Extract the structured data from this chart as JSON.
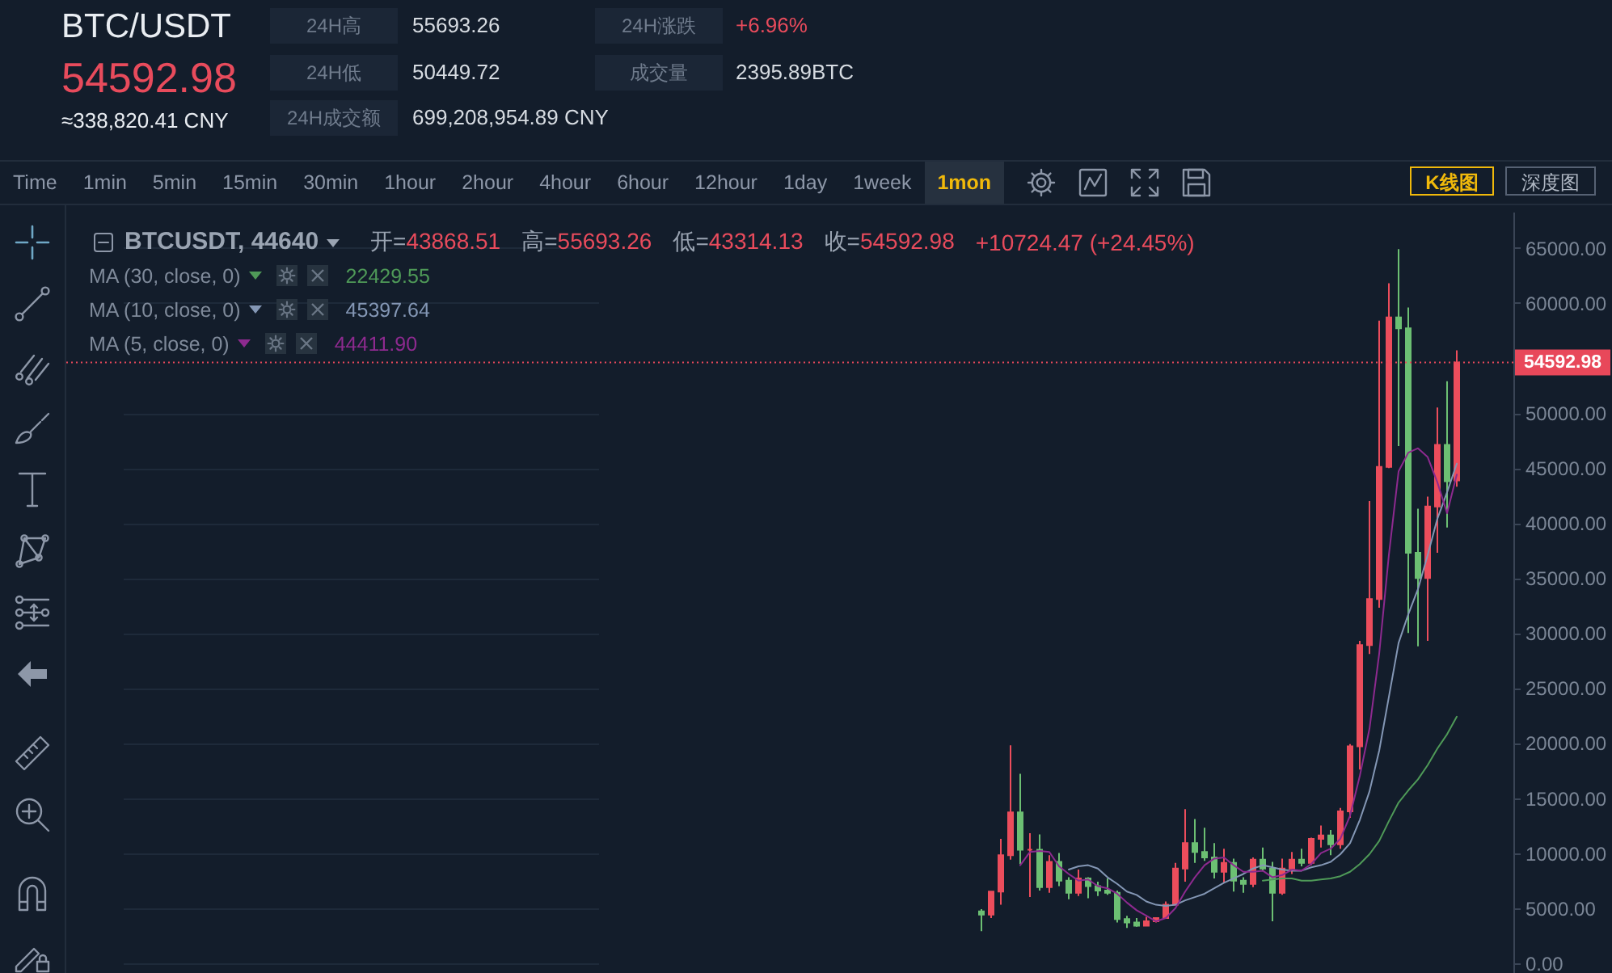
{
  "chart_data": [
    {
      "type": "other",
      "title": "BTC/USDT",
      "annotations": [
        "54592.98",
        "≈338,820.41 CNY",
        "24H高",
        "55693.26",
        "24H低",
        "50449.72",
        "24H成交额",
        "699,208,954.89 CNY",
        "24H涨跌",
        "+6.96%",
        "成交量",
        "2395.89BTC"
      ]
    },
    {
      "type": "other",
      "annotations": [
        "Time",
        "1min",
        "5min",
        "15min",
        "30min",
        "1hour",
        "2hour",
        "4hour",
        "6hour",
        "12hour",
        "1day",
        "1week",
        "1mon",
        "K线图",
        "深度图"
      ]
    },
    {
      "type": "candlestick",
      "annotations": [
        "BTCUSDT, 44640",
        "开=43868.51",
        "高=55693.26",
        "低=43314.13",
        "收=54592.98",
        "+10724.47 (+24.45%)",
        "22429.55",
        "45397.64",
        "44411.90"
      ],
      "categories": [
        null,
        null,
        null,
        null,
        null,
        null,
        null,
        null,
        null,
        null,
        null,
        null,
        null,
        null,
        null,
        null,
        null,
        null,
        null,
        null,
        null,
        null,
        null,
        null,
        null,
        null,
        null,
        null,
        null,
        null,
        null,
        null,
        null,
        null,
        null,
        null,
        null,
        null,
        null,
        null,
        null,
        null,
        null,
        null,
        null,
        null,
        null,
        null,
        null,
        null
      ],
      "ohlc": [
        [
          4700,
          4900,
          2900,
          4400
        ],
        [
          4400,
          6500,
          4100,
          6500
        ],
        [
          6500,
          11300,
          5300,
          9800
        ],
        [
          9800,
          19800,
          9400,
          13700
        ],
        [
          13700,
          17200,
          9000,
          10300
        ],
        [
          10300,
          11800,
          6000,
          10300
        ],
        [
          10300,
          11700,
          6600,
          6900
        ],
        [
          6900,
          9800,
          6400,
          9200
        ],
        [
          9200,
          10000,
          7000,
          7500
        ],
        [
          7500,
          7800,
          5800,
          6400
        ],
        [
          6400,
          8500,
          6100,
          7700
        ],
        [
          7700,
          7800,
          5900,
          7000
        ],
        [
          7000,
          7400,
          6100,
          6600
        ],
        [
          6600,
          7700,
          6200,
          6400
        ],
        [
          6400,
          6600,
          3700,
          4000
        ],
        [
          4000,
          4300,
          3200,
          3700
        ],
        [
          3700,
          4100,
          3300,
          3400
        ],
        [
          3400,
          4200,
          3400,
          3800
        ],
        [
          3800,
          4100,
          3700,
          4100
        ],
        [
          4100,
          5600,
          4100,
          5300
        ],
        [
          5300,
          9100,
          5300,
          8600
        ],
        [
          8600,
          14000,
          7400,
          10900
        ],
        [
          10900,
          13100,
          9100,
          10100
        ],
        [
          10100,
          12300,
          9300,
          9600
        ],
        [
          9600,
          10900,
          7700,
          8300
        ],
        [
          8300,
          10400,
          7300,
          9100
        ],
        [
          9100,
          9500,
          6500,
          7500
        ],
        [
          7500,
          7800,
          6400,
          7200
        ],
        [
          7200,
          9600,
          6900,
          9400
        ],
        [
          9400,
          10500,
          8400,
          8600
        ],
        [
          8600,
          9200,
          3800,
          6400
        ],
        [
          6400,
          9500,
          6200,
          8600
        ],
        [
          8600,
          10100,
          8100,
          9400
        ],
        [
          9400,
          10400,
          8800,
          9100
        ],
        [
          9100,
          11400,
          8900,
          11300
        ],
        [
          11300,
          12500,
          10500,
          11600
        ],
        [
          11600,
          12100,
          9800,
          10800
        ],
        [
          10800,
          14100,
          10400,
          13800
        ],
        [
          13800,
          19900,
          13200,
          19700
        ],
        [
          19700,
          29300,
          17600,
          28900
        ],
        [
          28900,
          42000,
          28100,
          33100
        ],
        [
          33100,
          58400,
          32300,
          45100
        ],
        [
          45100,
          61800,
          45000,
          58700
        ],
        [
          58700,
          64900,
          47000,
          57700
        ],
        [
          57700,
          59600,
          30000,
          37300
        ],
        [
          37300,
          41300,
          28800,
          35000
        ],
        [
          35000,
          42400,
          29300,
          41500
        ],
        [
          41500,
          50500,
          37300,
          47100
        ],
        [
          47100,
          52900,
          39600,
          43800
        ],
        [
          43868.51,
          55693.26,
          43314.13,
          54592.98
        ]
      ],
      "colors": [
        "#6cbf73",
        "#ec4d5c",
        "#ec4d5c",
        "#ec4d5c",
        "#6cbf73",
        "#ec4d5c",
        "#6cbf73",
        "#ec4d5c",
        "#6cbf73",
        "#6cbf73",
        "#ec4d5c",
        "#6cbf73",
        "#6cbf73",
        "#6cbf73",
        "#6cbf73",
        "#6cbf73",
        "#6cbf73",
        "#ec4d5c",
        "#ec4d5c",
        "#ec4d5c",
        "#ec4d5c",
        "#ec4d5c",
        "#6cbf73",
        "#6cbf73",
        "#6cbf73",
        "#ec4d5c",
        "#6cbf73",
        "#6cbf73",
        "#ec4d5c",
        "#6cbf73",
        "#6cbf73",
        "#ec4d5c",
        "#ec4d5c",
        "#6cbf73",
        "#ec4d5c",
        "#ec4d5c",
        "#6cbf73",
        "#ec4d5c",
        "#ec4d5c",
        "#ec4d5c",
        "#ec4d5c",
        "#ec4d5c",
        "#ec4d5c",
        "#6cbf73",
        "#6cbf73",
        "#6cbf73",
        "#ec4d5c",
        "#ec4d5c",
        "#6cbf73",
        "#ec4d5c"
      ],
      "series": [
        {
          "name": "MA (30, close, 0)",
          "type": "line",
          "color": "#4f9a58",
          "values": [
            null,
            null,
            null,
            null,
            null,
            null,
            null,
            null,
            null,
            null,
            null,
            null,
            null,
            null,
            null,
            null,
            null,
            null,
            null,
            null,
            null,
            null,
            null,
            null,
            null,
            null,
            null,
            null,
            null,
            7500,
            7600,
            7700,
            7700,
            7500,
            7500,
            7600,
            7700,
            7900,
            8300,
            9000,
            9900,
            11100,
            12900,
            14600,
            15700,
            16700,
            18000,
            19500,
            20800,
            22400
          ]
        },
        {
          "name": "MA (10, close, 0)",
          "type": "line",
          "color": "#8497b5",
          "values": [
            null,
            null,
            null,
            null,
            null,
            null,
            null,
            null,
            null,
            8500,
            8800,
            8900,
            8600,
            7800,
            7200,
            6500,
            6200,
            5600,
            5300,
            5200,
            5300,
            5700,
            6000,
            6300,
            6800,
            7300,
            7700,
            8100,
            8600,
            8900,
            8700,
            8500,
            8400,
            8400,
            8700,
            8900,
            9200,
            9900,
            10900,
            13000,
            15600,
            19300,
            24200,
            29100,
            31700,
            34000,
            37100,
            40400,
            42800,
            45400
          ]
        },
        {
          "name": "MA (5, close, 0)",
          "type": "line",
          "color": "#8d2a8f",
          "values": [
            null,
            null,
            null,
            null,
            8900,
            10100,
            10200,
            10100,
            8800,
            8100,
            7500,
            7600,
            7000,
            6800,
            6300,
            5500,
            4800,
            4300,
            3800,
            4100,
            5000,
            6500,
            7800,
            8900,
            9500,
            9600,
            8900,
            8300,
            8300,
            8400,
            7800,
            8000,
            8500,
            8400,
            9000,
            10000,
            10400,
            11300,
            13400,
            17000,
            21300,
            28100,
            37100,
            44700,
            46400,
            46800,
            46000,
            43700,
            40900,
            44400
          ]
        }
      ],
      "ylim": [
        -900,
        68300
      ],
      "yticks": [
        {
          "value": 0,
          "label": "0.00"
        },
        {
          "value": 5000,
          "label": "5000.00"
        },
        {
          "value": 10000,
          "label": "10000.00"
        },
        {
          "value": 15000,
          "label": "15000.00"
        },
        {
          "value": 20000,
          "label": "20000.00"
        },
        {
          "value": 25000,
          "label": "25000.00"
        },
        {
          "value": 30000,
          "label": "30000.00"
        },
        {
          "value": 35000,
          "label": "35000.00"
        },
        {
          "value": 40000,
          "label": "40000.00"
        },
        {
          "value": 45000,
          "label": "45000.00"
        },
        {
          "value": 50000,
          "label": "50000.00"
        },
        {
          "value": 60000,
          "label": "60000.00"
        },
        {
          "value": 65000,
          "label": "65000.00"
        }
      ],
      "ref_lines": [
        {
          "axis": "y",
          "value": 54592.98,
          "label": "54592.98",
          "color": "#e8485a",
          "line_style": "dotted"
        }
      ],
      "grid": "y",
      "legend": "top left",
      "tick_labels": "y"
    }
  ]
}
